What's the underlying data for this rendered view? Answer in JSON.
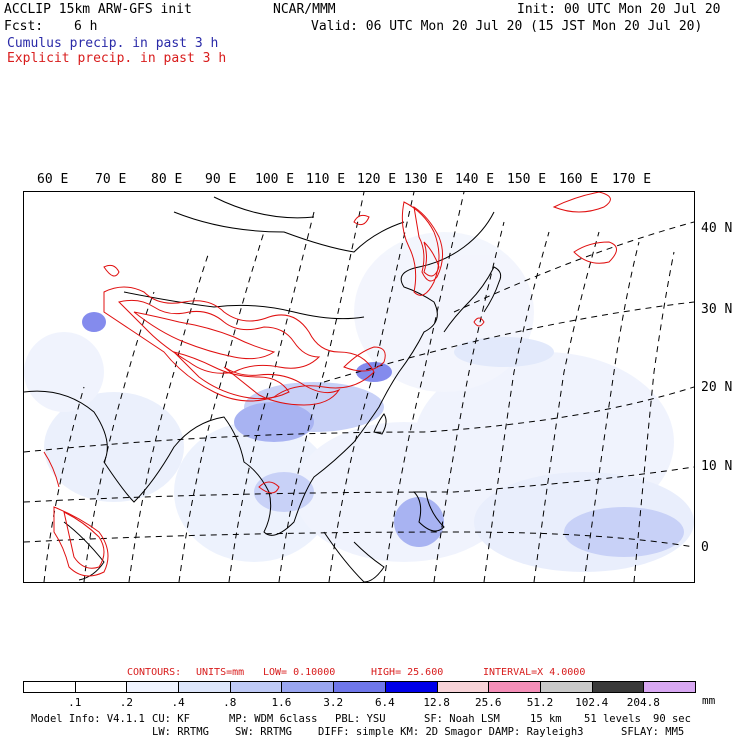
{
  "header": {
    "model": "ACCLIP 15km ARW-GFS init",
    "org": "NCAR/MMM",
    "init": "Init: 00 UTC Mon 20 Jul 20",
    "fcst_label": "Fcst:",
    "fcst_value": "6 h",
    "valid": "Valid: 06 UTC Mon 20 Jul 20 (15 JST Mon 20 Jul 20)",
    "cumulus": "Cumulus precip. in past 3 h",
    "explicit": "Explicit precip. in past 3 h"
  },
  "lon_labels": [
    "60 E",
    "70 E",
    "80 E",
    "90 E",
    "100 E",
    "110 E",
    "120 E",
    "130 E",
    "140 E",
    "150 E",
    "160 E",
    "170 E"
  ],
  "lat_labels": [
    "40 N",
    "30 N",
    "20 N",
    "10 N",
    "0"
  ],
  "contours": {
    "title": "CONTOURS:",
    "units": "UNITS=mm",
    "low": "LOW= 0.10000",
    "high": "HIGH= 25.600",
    "interval": "INTERVAL=X 4.0000"
  },
  "colorbar": {
    "labels": [
      ".1",
      ".2",
      ".4",
      ".8",
      "1.6",
      "3.2",
      "6.4",
      "12.8",
      "25.6",
      "51.2",
      "102.4",
      "204.8"
    ],
    "units": "mm",
    "colors": [
      "#ffffff",
      "#ffffff",
      "#f0f4ff",
      "#dde6fb",
      "#bfcaf6",
      "#9aa6f0",
      "#6f77ea",
      "#0000e8",
      "#f7d3d8",
      "#f48fb8",
      "#c9c9c9",
      "#3a3a3a",
      "#d8a8f2"
    ]
  },
  "footer": {
    "model_info": "Model Info: V4.1.1",
    "cu": "CU: KF",
    "mp": "MP: WDM 6class",
    "pbl": "PBL: YSU",
    "sf": "SF: Noah LSM",
    "res": "15 km",
    "levels": "51 levels",
    "dt": "90 sec",
    "lw": "LW: RRTMG",
    "sw": "SW: RRTMG",
    "diff": "DIFF: simple KM: 2D Smagor DAMP: Rayleigh3",
    "sflay": "SFLAY: MM5"
  }
}
